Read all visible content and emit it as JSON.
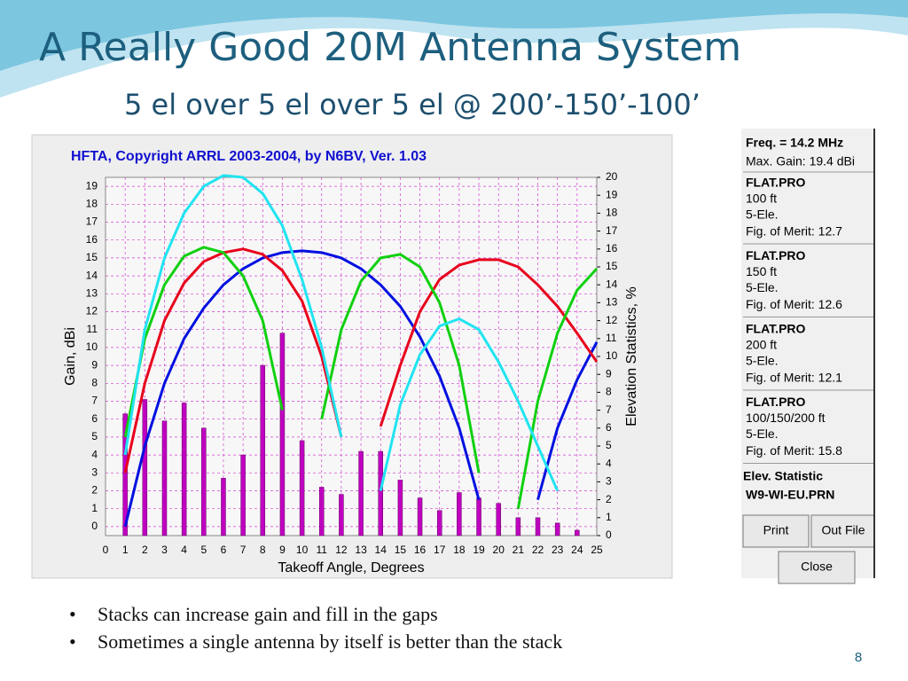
{
  "slide": {
    "title": "A Really Good 20M Antenna System",
    "subtitle": "5 el over 5 el over 5 el @ 200’-150’-100’",
    "bullets": [
      "Stacks can increase gain and fill in the gaps",
      "Sometimes a single antenna by itself is better than the stack"
    ],
    "page_number": "8"
  },
  "panel": {
    "freq": "Freq. = 14.2 MHz",
    "max_gain": "Max. Gain: 19.4 dBi",
    "groups": [
      {
        "file": "FLAT.PRO",
        "ele": "5-Ele.",
        "merit": "Fig. of Merit:  12.7"
      },
      {
        "file": "FLAT.PRO",
        "ele": "5-Ele.",
        "merit": "Fig. of Merit:  12.6"
      },
      {
        "file": "FLAT.PRO",
        "ele": "5-Ele.",
        "merit": "Fig. of Merit:  12.1"
      },
      {
        "file": "FLAT.PRO",
        "ele": "5-Ele.",
        "merit": "Fig. of Merit:  15.8"
      }
    ],
    "stat_title": "Elev. Statistic",
    "buttons": [
      "Print",
      "Out File",
      "Close"
    ]
  },
  "chart_data": {
    "type": "bar-line",
    "title": "HFTA, Copyright ARRL 2003-2004, by N6BV, Ver. 1.03",
    "x_label": "Takeoff Angle, Degrees",
    "y_label": "Gain, dBi",
    "y2_label": "Elevation Statistics, %",
    "x": [
      0,
      1,
      2,
      3,
      4,
      5,
      6,
      7,
      8,
      9,
      10,
      11,
      12,
      13,
      14,
      15,
      16,
      17,
      18,
      19,
      20,
      21,
      22,
      23,
      24,
      25
    ],
    "xlim": [
      0,
      25
    ],
    "xticks": [
      0,
      1,
      2,
      3,
      4,
      5,
      6,
      7,
      8,
      9,
      10,
      11,
      12,
      13,
      14,
      15,
      16,
      17,
      18,
      19,
      20,
      21,
      22,
      23,
      24,
      25
    ],
    "ylim": [
      -0.5,
      19.5
    ],
    "yticks": [
      0,
      1,
      2,
      3,
      4,
      5,
      6,
      7,
      8,
      9,
      10,
      11,
      12,
      13,
      14,
      15,
      16,
      17,
      18,
      19
    ],
    "y2lim": [
      0,
      20
    ],
    "y2ticks": [
      0,
      1,
      2,
      3,
      4,
      5,
      6,
      7,
      8,
      9,
      10,
      11,
      12,
      13,
      14,
      15,
      16,
      17,
      18,
      19,
      20
    ],
    "grid": true,
    "series": [
      {
        "name": "100 ft",
        "type": "line",
        "color": "#0010e0",
        "values": [
          null,
          0,
          4.5,
          8,
          10.5,
          12.2,
          13.5,
          14.4,
          15,
          15.3,
          15.4,
          15.3,
          15,
          14.4,
          13.5,
          12.3,
          10.6,
          8.4,
          5.5,
          1.5,
          null,
          null,
          1.5,
          5.5,
          8.2,
          10.3
        ]
      },
      {
        "name": "150 ft",
        "type": "line",
        "color": "#e8001c",
        "values": [
          null,
          3,
          8,
          11.5,
          13.6,
          14.8,
          15.3,
          15.5,
          15.2,
          14.3,
          12.6,
          9.5,
          5,
          null,
          5.6,
          9,
          12,
          13.8,
          14.6,
          14.9,
          14.9,
          14.5,
          13.5,
          12.3,
          10.8,
          9.2
        ]
      },
      {
        "name": "200 ft",
        "type": "line",
        "color": "#10d010",
        "values": [
          null,
          5,
          10.5,
          13.5,
          15.1,
          15.6,
          15.3,
          14,
          11.5,
          6.5,
          null,
          6,
          11,
          13.7,
          15,
          15.2,
          14.5,
          12.5,
          9,
          3,
          null,
          1,
          7,
          10.8,
          13.2,
          14.4
        ]
      },
      {
        "name": "100/150/200 ft",
        "type": "line",
        "color": "#20e4f0",
        "values": [
          null,
          4,
          11,
          15,
          17.5,
          19,
          19.6,
          19.5,
          18.6,
          16.8,
          13.8,
          10,
          5,
          null,
          2,
          6.8,
          9.6,
          11.2,
          11.6,
          11,
          9.2,
          7,
          4.5,
          2,
          null,
          null
        ]
      },
      {
        "name": "W9-WI-EU.PRN",
        "type": "bar",
        "axis": "y2",
        "color": "#c000c0",
        "values": [
          null,
          6.8,
          7.6,
          6.4,
          7.4,
          6.0,
          3.2,
          4.5,
          9.5,
          11.3,
          5.3,
          2.7,
          2.3,
          4.7,
          4.7,
          3.1,
          2.1,
          1.4,
          2.4,
          2.1,
          1.8,
          1.0,
          1.0,
          0.7,
          0.3,
          null
        ]
      }
    ]
  }
}
